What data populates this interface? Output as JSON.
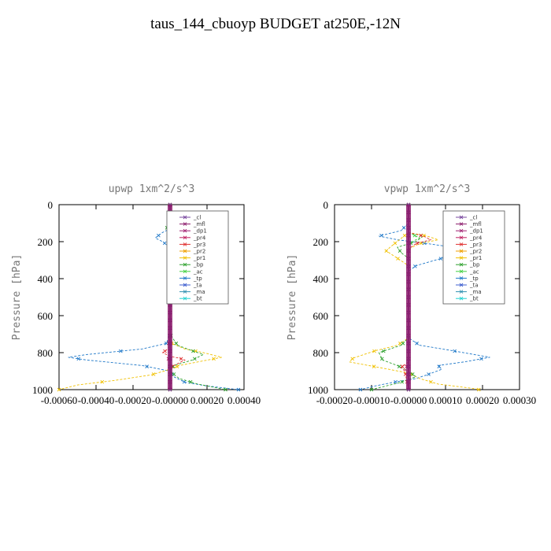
{
  "title": "taus_144_cbuoyp  BUDGET at250E,-12N",
  "chart_data": [
    {
      "type": "line",
      "title": "upwp   1xm^2/s^3",
      "ylabel": "Pressure [hPa]",
      "xlim": [
        -0.0006,
        0.0004
      ],
      "ylim": [
        1000,
        0
      ],
      "xticks": [
        "-0.00060",
        "-0.00040",
        "-0.00020",
        "-0.00000",
        "0.00020",
        "0.00040"
      ],
      "xtick_values": [
        -0.0006,
        -0.0004,
        -0.0002,
        0,
        0.0002,
        0.0004
      ],
      "yticks": [
        "0",
        "200",
        "400",
        "600",
        "800",
        "1000"
      ],
      "ytick_values": [
        0,
        200,
        400,
        600,
        800,
        1000
      ],
      "legend": [
        "_cl",
        "_mfl",
        "_dp1",
        "_pr4",
        "_pr3",
        "_pr2",
        "_pr1",
        "_bp",
        "_ac",
        "_tp",
        "_ta",
        "_ma",
        "_bt"
      ],
      "series": [
        {
          "name": "_tp",
          "color": "#1f78c8",
          "points": [
            [
              0,
              0
            ],
            [
              0,
              80
            ],
            [
              4e-05,
              100
            ],
            [
              2e-05,
              120
            ],
            [
              -4e-05,
              150
            ],
            [
              -8e-05,
              180
            ],
            [
              -4e-05,
              200
            ],
            [
              0,
              230
            ],
            [
              0,
              300
            ],
            [
              1e-05,
              330
            ],
            [
              0,
              360
            ],
            [
              0,
              700
            ],
            [
              -2e-05,
              750
            ],
            [
              -0.00015,
              780
            ],
            [
              -0.00045,
              810
            ],
            [
              -0.00055,
              825
            ],
            [
              -0.00045,
              840
            ],
            [
              -0.00015,
              870
            ],
            [
              0,
              900
            ],
            [
              2e-05,
              930
            ],
            [
              8e-05,
              960
            ],
            [
              0.0002,
              980
            ],
            [
              0.00037,
              1000
            ]
          ]
        },
        {
          "name": "_pr1",
          "color": "#f0c000",
          "points": [
            [
              0,
              0
            ],
            [
              0,
              100
            ],
            [
              2e-05,
              130
            ],
            [
              2e-05,
              160
            ],
            [
              0,
              200
            ],
            [
              0,
              700
            ],
            [
              1e-05,
              750
            ],
            [
              8e-05,
              780
            ],
            [
              0.00018,
              800
            ],
            [
              0.00028,
              825
            ],
            [
              0.00015,
              850
            ],
            [
              5e-05,
              870
            ],
            [
              0,
              890
            ],
            [
              -0.0001,
              920
            ],
            [
              -0.0003,
              950
            ],
            [
              -0.0005,
              975
            ],
            [
              -0.0006,
              1000
            ]
          ]
        },
        {
          "name": "_bp",
          "color": "#2ca02c",
          "points": [
            [
              0,
              0
            ],
            [
              0,
              100
            ],
            [
              -2e-05,
              120
            ],
            [
              0,
              150
            ],
            [
              0,
              700
            ],
            [
              4e-05,
              760
            ],
            [
              0.00012,
              790
            ],
            [
              0.00018,
              810
            ],
            [
              0.00012,
              840
            ],
            [
              2e-05,
              870
            ],
            [
              0,
              900
            ],
            [
              5e-05,
              940
            ],
            [
              0.00015,
              970
            ],
            [
              0.00025,
              990
            ],
            [
              0.0003,
              1000
            ]
          ]
        },
        {
          "name": "_pr3",
          "color": "#e03030",
          "points": [
            [
              0,
              0
            ],
            [
              0,
              700
            ],
            [
              -1e-05,
              780
            ],
            [
              -4e-05,
              800
            ],
            [
              0,
              820
            ],
            [
              5e-05,
              830
            ],
            [
              8e-05,
              840
            ],
            [
              4e-05,
              860
            ],
            [
              0,
              880
            ],
            [
              0,
              1000
            ]
          ]
        },
        {
          "name": "_pr2",
          "color": "#f0c000",
          "points": [
            [
              0,
              0
            ],
            [
              0,
              130
            ],
            [
              -1e-05,
              160
            ],
            [
              0,
              200
            ],
            [
              0,
              1000
            ]
          ]
        },
        {
          "name": "_ac",
          "color": "#40d040",
          "points": [
            [
              0,
              0
            ],
            [
              0,
              100
            ],
            [
              -2e-05,
              110
            ],
            [
              0,
              130
            ],
            [
              0,
              1000
            ]
          ]
        },
        {
          "name": "_pr4",
          "color": "#c02060",
          "points": [
            [
              0,
              0
            ],
            [
              0,
              800
            ],
            [
              -1e-05,
              830
            ],
            [
              0,
              860
            ],
            [
              0,
              1000
            ]
          ]
        },
        {
          "name": "_dp1",
          "color": "#a02070",
          "points": [
            [
              0,
              0
            ],
            [
              0,
              1000
            ]
          ]
        },
        {
          "name": "_mfl",
          "color": "#8b1a6b",
          "points": [
            [
              0,
              0
            ],
            [
              0,
              1000
            ]
          ]
        },
        {
          "name": "_cl",
          "color": "#7a4aa0",
          "points": [
            [
              0,
              0
            ],
            [
              0,
              1000
            ]
          ]
        }
      ]
    },
    {
      "type": "line",
      "title": "vpwp   1xm^2/s^3",
      "ylabel": "Pressure [hPa]",
      "xlim": [
        -0.0002,
        0.0003
      ],
      "ylim": [
        1000,
        0
      ],
      "xticks": [
        "-0.00020",
        "-0.00010",
        "-0.00000",
        "0.00010",
        "0.00020",
        "0.00030"
      ],
      "xtick_values": [
        -0.0002,
        -0.0001,
        0,
        0.0001,
        0.0002,
        0.0003
      ],
      "yticks": [
        "0",
        "200",
        "400",
        "600",
        "800",
        "1000"
      ],
      "ytick_values": [
        0,
        200,
        400,
        600,
        800,
        1000
      ],
      "legend": [
        "_cl",
        "_mfl",
        "_dp1",
        "_pr4",
        "_pr3",
        "_pr2",
        "_pr1",
        "_bp",
        "_ac",
        "_tp",
        "_ta",
        "_ma",
        "_bt"
      ],
      "series": [
        {
          "name": "_tp",
          "color": "#1f78c8",
          "points": [
            [
              0,
              0
            ],
            [
              0,
              100
            ],
            [
              -2e-05,
              140
            ],
            [
              -8e-05,
              170
            ],
            [
              -3e-05,
              190
            ],
            [
              5e-05,
              210
            ],
            [
              0.00012,
              230
            ],
            [
              0.00018,
              260
            ],
            [
              9e-05,
              290
            ],
            [
              2e-05,
              330
            ],
            [
              0,
              360
            ],
            [
              0,
              720
            ],
            [
              3e-05,
              760
            ],
            [
              0.00012,
              790
            ],
            [
              0.00022,
              825
            ],
            [
              0.00015,
              850
            ],
            [
              8e-05,
              870
            ],
            [
              9e-05,
              890
            ],
            [
              5e-05,
              920
            ],
            [
              2e-05,
              940
            ],
            [
              -4e-05,
              960
            ],
            [
              -9e-05,
              980
            ],
            [
              -0.00013,
              1000
            ]
          ]
        },
        {
          "name": "_pr1",
          "color": "#f0c000",
          "points": [
            [
              0,
              0
            ],
            [
              0,
              150
            ],
            [
              -5e-05,
              230
            ],
            [
              -6e-05,
              250
            ],
            [
              -3e-05,
              290
            ],
            [
              0,
              330
            ],
            [
              0,
              720
            ],
            [
              -3e-05,
              760
            ],
            [
              -9e-05,
              790
            ],
            [
              -0.00015,
              830
            ],
            [
              -0.00016,
              850
            ],
            [
              -8e-05,
              880
            ],
            [
              0,
              910
            ],
            [
              3e-05,
              940
            ],
            [
              8e-05,
              970
            ],
            [
              0.00018,
              995
            ],
            [
              0.00019,
              1000
            ]
          ]
        },
        {
          "name": "_bp",
          "color": "#2ca02c",
          "points": [
            [
              0,
              0
            ],
            [
              0,
              150
            ],
            [
              4e-05,
              170
            ],
            [
              2e-05,
              200
            ],
            [
              -3e-05,
              230
            ],
            [
              -2e-05,
              260
            ],
            [
              0,
              290
            ],
            [
              0,
              720
            ],
            [
              -2e-05,
              760
            ],
            [
              -8e-05,
              800
            ],
            [
              -7e-05,
              840
            ],
            [
              -3e-05,
              870
            ],
            [
              0,
              900
            ],
            [
              2e-05,
              930
            ],
            [
              -2e-05,
              960
            ],
            [
              -8e-05,
              990
            ],
            [
              -0.0001,
              1000
            ]
          ]
        },
        {
          "name": "_pr2",
          "color": "#f0c000",
          "points": [
            [
              0,
              0
            ],
            [
              0,
              150
            ],
            [
              5e-05,
              170
            ],
            [
              8e-05,
              190
            ],
            [
              3e-05,
              210
            ],
            [
              0,
              240
            ],
            [
              0,
              1000
            ]
          ]
        },
        {
          "name": "_pr3",
          "color": "#e03030",
          "points": [
            [
              0,
              0
            ],
            [
              0,
              150
            ],
            [
              4e-05,
              170
            ],
            [
              6e-05,
              190
            ],
            [
              2e-05,
              210
            ],
            [
              0,
              240
            ],
            [
              0,
              850
            ],
            [
              -2e-05,
              880
            ],
            [
              -1e-05,
              900
            ],
            [
              0,
              1000
            ]
          ]
        },
        {
          "name": "_ac",
          "color": "#40d040",
          "points": [
            [
              0,
              0
            ],
            [
              0,
              150
            ],
            [
              3e-05,
              180
            ],
            [
              0,
              210
            ],
            [
              0,
              1000
            ]
          ]
        },
        {
          "name": "_pr4",
          "color": "#c02060",
          "points": [
            [
              0,
              0
            ],
            [
              0,
              860
            ],
            [
              -1e-05,
              890
            ],
            [
              0,
              920
            ],
            [
              0,
              1000
            ]
          ]
        },
        {
          "name": "_dp1",
          "color": "#a02070",
          "points": [
            [
              0,
              0
            ],
            [
              0,
              1000
            ]
          ]
        },
        {
          "name": "_mfl",
          "color": "#8b1a6b",
          "points": [
            [
              0,
              0
            ],
            [
              0,
              1000
            ]
          ]
        },
        {
          "name": "_cl",
          "color": "#7a4aa0",
          "points": [
            [
              0,
              0
            ],
            [
              0,
              1000
            ]
          ]
        }
      ]
    }
  ],
  "legend_styles": [
    {
      "name": "_cl",
      "color": "#7a4aa0"
    },
    {
      "name": "_mfl",
      "color": "#8b1a6b"
    },
    {
      "name": "_dp1",
      "color": "#a02070"
    },
    {
      "name": "_pr4",
      "color": "#c02060"
    },
    {
      "name": "_pr3",
      "color": "#e03030"
    },
    {
      "name": "_pr2",
      "color": "#f0a000"
    },
    {
      "name": "_pr1",
      "color": "#f0c000"
    },
    {
      "name": "_bp",
      "color": "#2ca02c"
    },
    {
      "name": "_ac",
      "color": "#40d040"
    },
    {
      "name": "_tp",
      "color": "#1f78c8"
    },
    {
      "name": "_ta",
      "color": "#4060d0"
    },
    {
      "name": "_ma",
      "color": "#3090b0"
    },
    {
      "name": "_bt",
      "color": "#20d0d0"
    }
  ]
}
